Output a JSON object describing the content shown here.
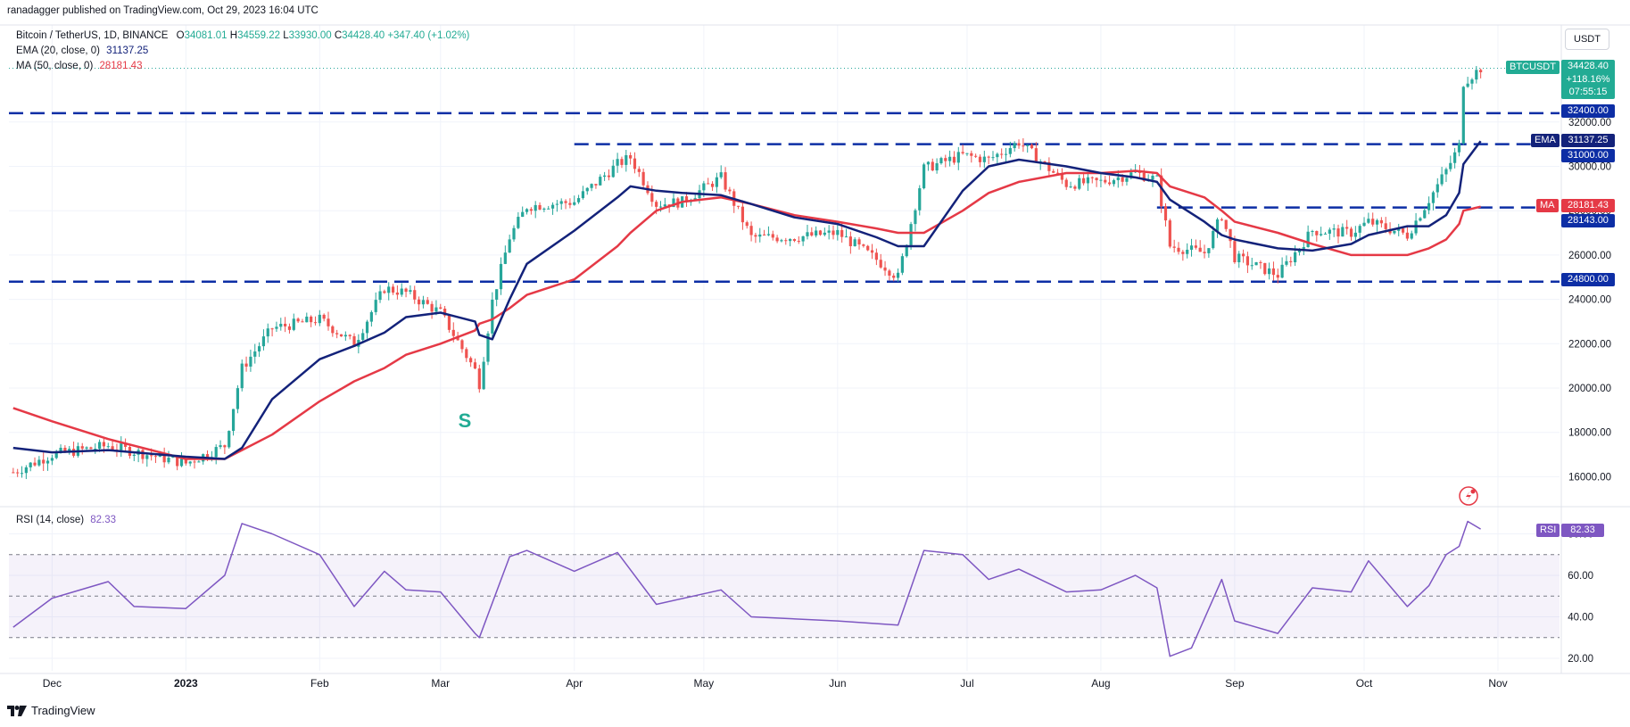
{
  "header": {
    "published": "ranadagger published on TradingView.com, Oct 29, 2023 16:04 UTC",
    "symbol_title": "Bitcoin / TetherUS, 1D, BINANCE",
    "ohlc": {
      "o_label": "O",
      "o": "34081.01",
      "h_label": "H",
      "h": "34559.22",
      "l_label": "L",
      "l": "33930.00",
      "c_label": "C",
      "c": "34428.40",
      "change": "+347.40 (+1.02%)"
    },
    "ema_label": "EMA (20, close, 0)",
    "ema_value": "31137.25",
    "ma_label": "MA (50, close, 0)",
    "ma_value": "28181.43",
    "rsi_label": "RSI (14, close)",
    "rsi_value": "82.33"
  },
  "currency_button": "USDT",
  "price_tags": {
    "symbol": "BTCUSDT",
    "last": "34428.40",
    "change_pct": "+118.16%",
    "countdown": "07:55:15",
    "ema_tag": "EMA",
    "ema": "31137.25",
    "ma_tag": "MA",
    "ma": "28181.43",
    "rsi_tag": "RSI",
    "rsi": "82.33",
    "levels": [
      "32400.00",
      "31000.00",
      "28143.00",
      "24800.00"
    ]
  },
  "annotation_s": "S",
  "footer": {
    "brand": "TradingView"
  },
  "colors": {
    "up": "#26a69a",
    "down": "#ef5350",
    "ema": "#13227a",
    "ma": "#e53946",
    "rsi": "#7e57c2",
    "levels": "#0d2ea5",
    "btc_tag": "#22ab94"
  },
  "chart_data": [
    {
      "type": "line",
      "title": "",
      "x_ticks": [
        "Dec",
        "2023",
        "Feb",
        "Mar",
        "Apr",
        "May",
        "Jun",
        "Jul",
        "Aug",
        "Sep",
        "Oct",
        "Nov"
      ],
      "y_ticks": [
        16000,
        18000,
        20000,
        22000,
        24000,
        26000,
        28000,
        30000,
        32000
      ],
      "ylim": [
        14900,
        35800
      ],
      "x": [
        "2022-11-22",
        "2022-12-01",
        "2022-12-14",
        "2023-01-01",
        "2023-01-10",
        "2023-01-14",
        "2023-01-21",
        "2023-02-01",
        "2023-02-09",
        "2023-02-16",
        "2023-02-21",
        "2023-03-01",
        "2023-03-09",
        "2023-03-10",
        "2023-03-13",
        "2023-03-17",
        "2023-03-21",
        "2023-04-01",
        "2023-04-11",
        "2023-04-14",
        "2023-04-20",
        "2023-04-26",
        "2023-05-05",
        "2023-05-12",
        "2023-05-22",
        "2023-06-01",
        "2023-06-10",
        "2023-06-15",
        "2023-06-21",
        "2023-06-30",
        "2023-07-06",
        "2023-07-13",
        "2023-07-24",
        "2023-08-01",
        "2023-08-09",
        "2023-08-14",
        "2023-08-17",
        "2023-08-25",
        "2023-08-29",
        "2023-09-01",
        "2023-09-11",
        "2023-09-19",
        "2023-09-28",
        "2023-10-02",
        "2023-10-11",
        "2023-10-16",
        "2023-10-20",
        "2023-10-23",
        "2023-10-24",
        "2023-10-28"
      ],
      "series": [
        {
          "name": "BTCUSDT",
          "values": [
            16200,
            17000,
            17400,
            16600,
            17400,
            20900,
            22700,
            23100,
            22000,
            24500,
            24300,
            23400,
            20800,
            20200,
            23900,
            26800,
            28200,
            28400,
            30100,
            30400,
            28300,
            28400,
            29500,
            26800,
            26800,
            27000,
            25800,
            25000,
            29900,
            30500,
            30300,
            31100,
            29200,
            29300,
            29700,
            29400,
            26400,
            26100,
            27800,
            25900,
            25100,
            27100,
            27000,
            27500,
            26900,
            28500,
            29800,
            30900,
            33800,
            34428.4
          ]
        },
        {
          "name": "EMA",
          "values": [
            17300,
            17100,
            17200,
            16900,
            16800,
            17300,
            19500,
            21300,
            21900,
            22500,
            23200,
            23400,
            23000,
            22400,
            22200,
            24000,
            25600,
            27100,
            28600,
            29100,
            28900,
            28800,
            28700,
            28300,
            27700,
            27400,
            26800,
            26400,
            26400,
            28900,
            30000,
            30300,
            30000,
            29700,
            29500,
            29300,
            28500,
            27500,
            26900,
            26700,
            26300,
            26200,
            26500,
            26900,
            27300,
            27300,
            27800,
            28800,
            30100,
            31137.25
          ]
        },
        {
          "name": "MA",
          "values": [
            19100,
            18500,
            17700,
            16800,
            16800,
            17200,
            17900,
            19400,
            20300,
            20900,
            21500,
            22000,
            22600,
            22900,
            23100,
            23600,
            24200,
            24900,
            26400,
            27000,
            28000,
            28400,
            28600,
            28300,
            27800,
            27500,
            27200,
            27000,
            27000,
            28000,
            28800,
            29300,
            29700,
            29700,
            29800,
            29700,
            29100,
            28600,
            28000,
            27500,
            27000,
            26500,
            26000,
            26000,
            26000,
            26300,
            26700,
            27400,
            28000,
            28181.43
          ]
        }
      ],
      "horizontal_levels": [
        32400,
        31000,
        28143,
        24800
      ],
      "annotations": [
        {
          "text": "S",
          "x": "2023-03-10"
        }
      ]
    },
    {
      "type": "line",
      "title": "",
      "y_ticks": [
        20,
        40,
        60,
        80
      ],
      "ylim": [
        15,
        87
      ],
      "bands": [
        30,
        50,
        70
      ],
      "x": [
        "2022-11-22",
        "2022-12-01",
        "2022-12-14",
        "2022-12-20",
        "2023-01-01",
        "2023-01-10",
        "2023-01-14",
        "2023-01-21",
        "2023-02-01",
        "2023-02-09",
        "2023-02-16",
        "2023-02-21",
        "2023-03-01",
        "2023-03-09",
        "2023-03-10",
        "2023-03-17",
        "2023-03-21",
        "2023-04-01",
        "2023-04-11",
        "2023-04-20",
        "2023-05-05",
        "2023-05-12",
        "2023-06-01",
        "2023-06-15",
        "2023-06-21",
        "2023-06-30",
        "2023-07-06",
        "2023-07-13",
        "2023-07-24",
        "2023-08-01",
        "2023-08-09",
        "2023-08-14",
        "2023-08-17",
        "2023-08-22",
        "2023-08-29",
        "2023-09-01",
        "2023-09-11",
        "2023-09-19",
        "2023-09-28",
        "2023-10-02",
        "2023-10-11",
        "2023-10-16",
        "2023-10-20",
        "2023-10-23",
        "2023-10-25",
        "2023-10-28"
      ],
      "series": [
        {
          "name": "RSI",
          "values": [
            35,
            49,
            57,
            45,
            44,
            60,
            85,
            80,
            70,
            45,
            62,
            53,
            52,
            32,
            30,
            69,
            72,
            62,
            71,
            46,
            53,
            40,
            38,
            36,
            72,
            70,
            58,
            63,
            52,
            53,
            60,
            54,
            21,
            25,
            58,
            38,
            32,
            54,
            52,
            67,
            45,
            55,
            70,
            74,
            86,
            82.33
          ]
        }
      ]
    }
  ]
}
